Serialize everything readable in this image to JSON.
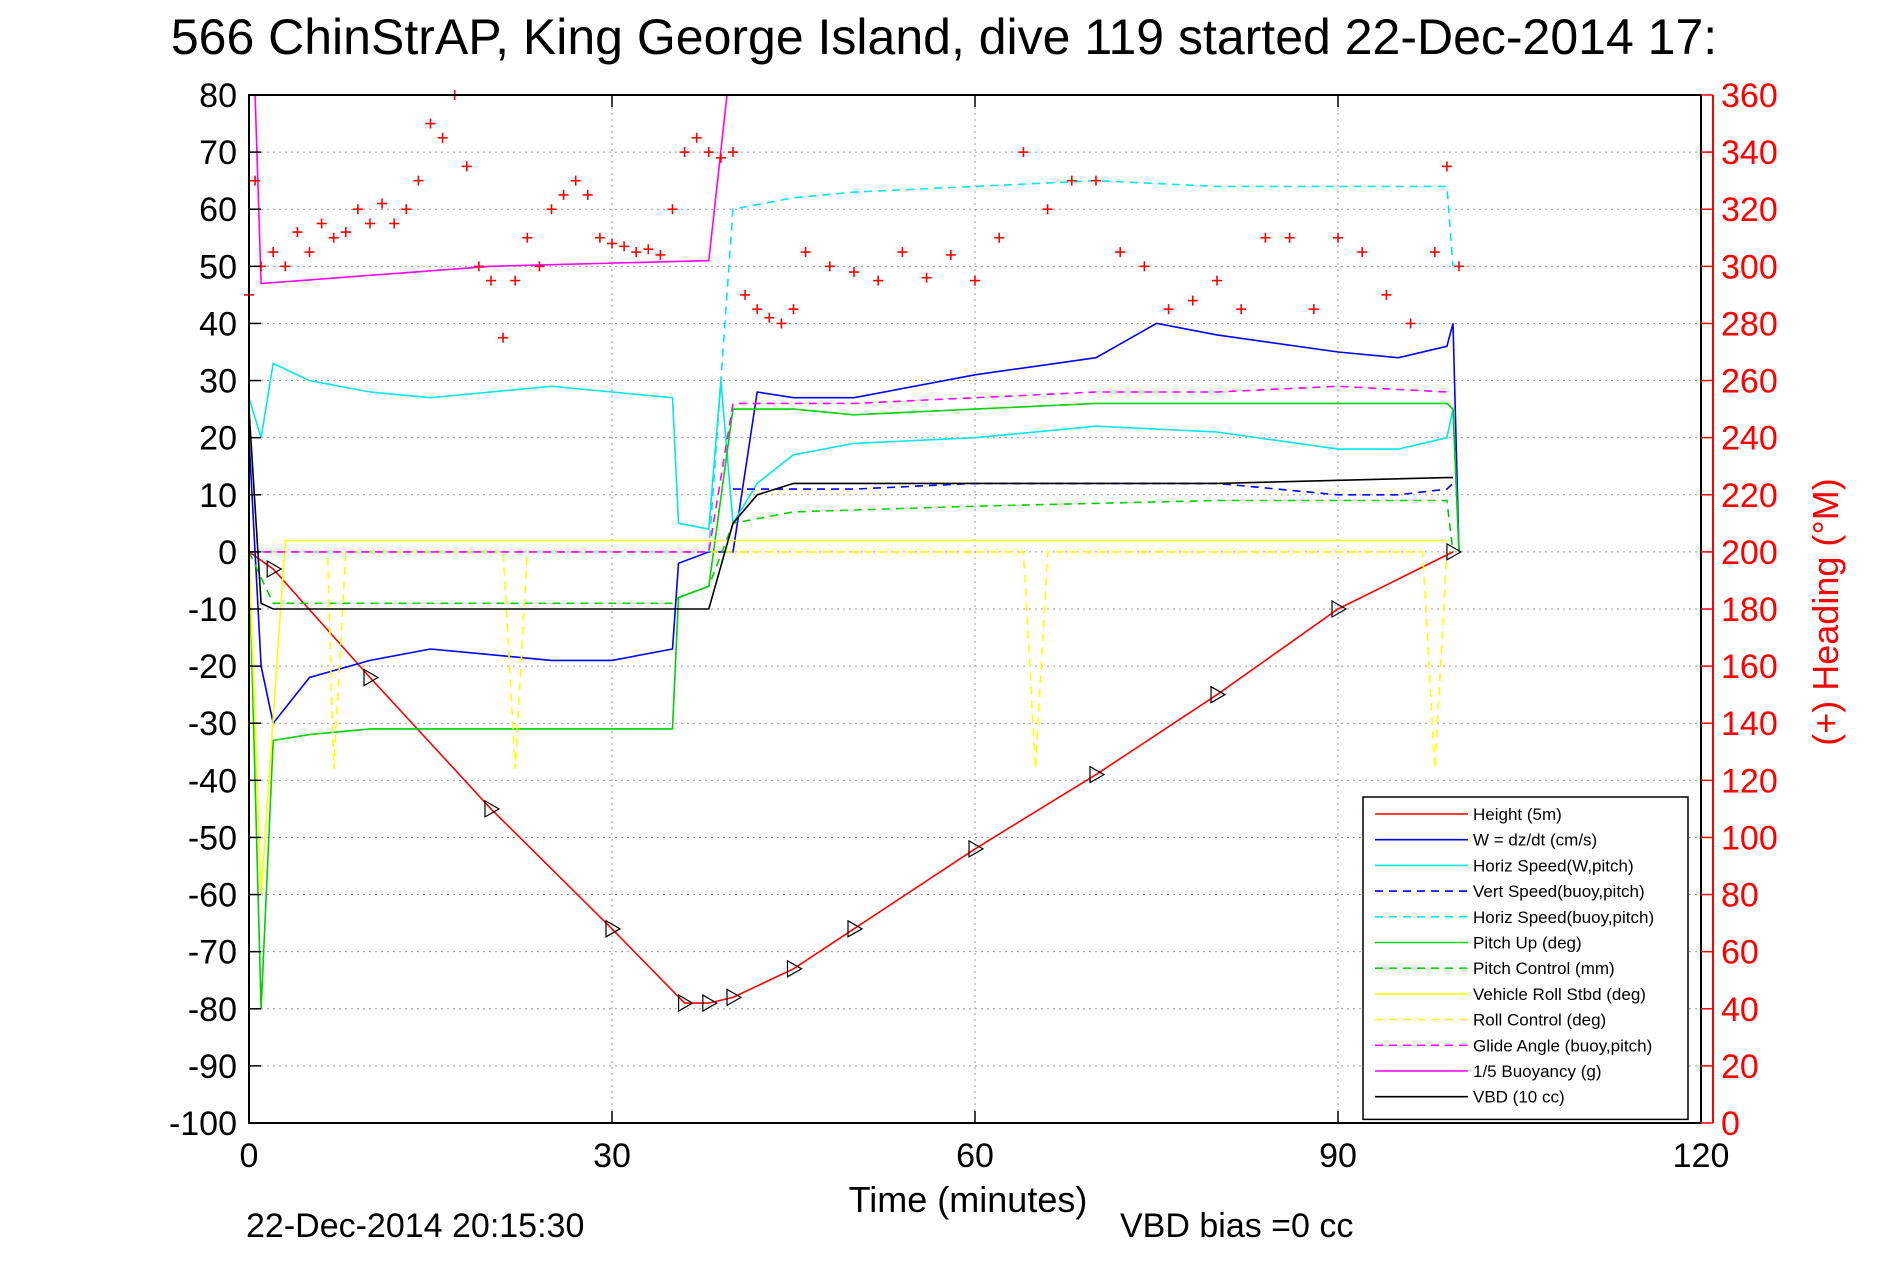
{
  "chart_data": {
    "type": "line",
    "title": "566 ChinStrAP, King George Island, dive 119 started 22-Dec-2014 17:",
    "xlabel": "Time (minutes)",
    "ylabel": "",
    "ylabel_right": "(+) Heading (°M)",
    "xlim": [
      0,
      120
    ],
    "ylim": [
      -100,
      80
    ],
    "ylim_right": [
      0,
      360
    ],
    "x_ticks": [
      "0",
      "30",
      "60",
      "90",
      "120"
    ],
    "y_ticks": [
      "80",
      "70",
      "60",
      "50",
      "40",
      "30",
      "20",
      "10",
      "0",
      "-10",
      "-20",
      "-30",
      "-40",
      "-50",
      "-60",
      "-70",
      "-80",
      "-90",
      "-100"
    ],
    "y_ticks_right": [
      "360",
      "340",
      "320",
      "300",
      "280",
      "260",
      "240",
      "220",
      "200",
      "180",
      "160",
      "140",
      "120",
      "100",
      "80",
      "60",
      "40",
      "20",
      "0"
    ],
    "grid": true,
    "legend_position": "bottom-right",
    "footer_left": "22-Dec-2014 20:15:30",
    "footer_right": "VBD bias =0 cc",
    "series": [
      {
        "name": "Height (5m)",
        "color": "#ff0000",
        "dash": "solid",
        "x": [
          0,
          2,
          10,
          20,
          30,
          36,
          38,
          40,
          45,
          50,
          60,
          70,
          80,
          90,
          99.5
        ],
        "y": [
          0,
          -3,
          -22,
          -45,
          -66,
          -79,
          -79,
          -78,
          -73,
          -66,
          -52,
          -39,
          -25,
          -10,
          0
        ]
      },
      {
        "name": "W = dz/dt (cm/s)",
        "color": "#0000ff",
        "dash": "solid",
        "x": [
          0,
          1,
          2,
          5,
          10,
          15,
          20,
          25,
          30,
          35,
          35.5,
          38,
          40,
          42,
          45,
          50,
          60,
          70,
          75,
          80,
          90,
          95,
          99,
          99.5,
          100
        ],
        "y": [
          20,
          -20,
          -30,
          -22,
          -19,
          -17,
          -18,
          -19,
          -19,
          -17,
          -2,
          0,
          0,
          28,
          27,
          27,
          31,
          34,
          40,
          38,
          35,
          34,
          36,
          40,
          0
        ]
      },
      {
        "name": "Horiz Speed(W,pitch)",
        "color": "#00e8e8",
        "dash": "solid",
        "x": [
          0,
          1,
          2,
          5,
          10,
          15,
          20,
          25,
          30,
          35,
          35.5,
          38,
          39,
          40,
          42,
          45,
          50,
          60,
          70,
          80,
          90,
          95,
          99,
          99.5,
          100
        ],
        "y": [
          27,
          20,
          33,
          30,
          28,
          27,
          28,
          29,
          28,
          27,
          5,
          4,
          30,
          5,
          12,
          17,
          19,
          20,
          22,
          21,
          18,
          18,
          20,
          25,
          0
        ]
      },
      {
        "name": "Vert Speed(buoy,pitch)",
        "color": "#0000ff",
        "dash": "dashed",
        "x": [
          40,
          45,
          50,
          60,
          70,
          80,
          90,
          95,
          99,
          99.5
        ],
        "y": [
          11,
          11,
          11,
          12,
          12,
          12,
          10,
          10,
          11,
          12
        ]
      },
      {
        "name": "Horiz Speed(buoy,pitch)",
        "color": "#00e8e8",
        "dash": "dashed",
        "x": [
          38,
          39,
          40,
          45,
          50,
          60,
          70,
          80,
          90,
          99,
          99.5
        ],
        "y": [
          0,
          30,
          60,
          62,
          63,
          64,
          65,
          64,
          64,
          64,
          50
        ]
      },
      {
        "name": "Pitch Up (deg)",
        "color": "#00d000",
        "dash": "solid",
        "x": [
          0,
          1,
          2,
          5,
          10,
          20,
          30,
          35,
          35.5,
          38,
          40,
          45,
          50,
          60,
          70,
          80,
          90,
          99,
          99.5,
          100
        ],
        "y": [
          0,
          -80,
          -33,
          -32,
          -31,
          -31,
          -31,
          -31,
          -8,
          -6,
          25,
          25,
          24,
          25,
          26,
          26,
          26,
          26,
          25,
          0
        ]
      },
      {
        "name": "Pitch Control (mm)",
        "color": "#00d000",
        "dash": "dashed",
        "x": [
          0,
          2,
          35,
          35.5,
          38,
          40,
          45,
          60,
          80,
          99,
          99.5
        ],
        "y": [
          0,
          -9,
          -9,
          -8,
          -6,
          5,
          7,
          8,
          9,
          9,
          0
        ]
      },
      {
        "name": "Vehicle Roll Stbd (deg)",
        "color": "#ffff00",
        "dash": "solid",
        "x": [
          0,
          1,
          3,
          10,
          20,
          30,
          40,
          50,
          60,
          70,
          80,
          90,
          99
        ],
        "y": [
          0,
          -60,
          2,
          2,
          2,
          2,
          2,
          2,
          2,
          2,
          2,
          2,
          2
        ]
      },
      {
        "name": "Roll Control (deg)",
        "color": "#ffff00",
        "dash": "dashed",
        "x": [
          0,
          2,
          6.5,
          7,
          8,
          21,
          22,
          23,
          38,
          40,
          50,
          60,
          64,
          65,
          66,
          90,
          97,
          98,
          99
        ],
        "y": [
          0,
          0,
          0,
          -38,
          0,
          0,
          -38,
          0,
          0,
          0,
          0,
          0,
          0,
          -38,
          0,
          0,
          0,
          -38,
          0
        ]
      },
      {
        "name": "Glide Angle (buoy,pitch)",
        "color": "#ff00ff",
        "dash": "dashed",
        "x": [
          0,
          38,
          40,
          50,
          60,
          70,
          80,
          90,
          99
        ],
        "y": [
          0,
          0,
          26,
          26,
          27,
          28,
          28,
          29,
          28
        ]
      },
      {
        "name": "1/5 Buoyancy (g)",
        "color": "#ff00ff",
        "dash": "solid",
        "x": [
          0,
          0.5,
          1,
          20,
          38,
          39.5
        ],
        "y": [
          80,
          80,
          47,
          50,
          51,
          80
        ]
      },
      {
        "name": "VBD (10 cc)",
        "color": "#000000",
        "dash": "solid",
        "x": [
          0,
          1,
          2,
          36,
          38,
          40,
          42,
          45,
          50,
          60,
          80,
          99,
          99.5
        ],
        "y": [
          25,
          -9,
          -10,
          -10,
          -10,
          5,
          10,
          12,
          12,
          12,
          12,
          13,
          13
        ]
      }
    ],
    "heading_series": {
      "color": "#ff0000",
      "marker": "+",
      "axis": "right",
      "x": [
        0,
        0.5,
        1,
        2,
        3,
        4,
        5,
        6,
        7,
        8,
        9,
        10,
        11,
        12,
        13,
        14,
        15,
        16,
        17,
        18,
        19,
        20,
        21,
        22,
        23,
        24,
        25,
        26,
        27,
        28,
        29,
        30,
        31,
        32,
        33,
        34,
        35,
        36,
        37,
        38,
        39,
        40,
        41,
        42,
        43,
        44,
        45,
        46,
        48,
        50,
        52,
        54,
        56,
        58,
        60,
        62,
        64,
        66,
        68,
        70,
        72,
        74,
        76,
        78,
        80,
        82,
        84,
        86,
        88,
        90,
        92,
        94,
        96,
        98,
        99,
        100
      ],
      "y": [
        290,
        330,
        300,
        305,
        300,
        312,
        305,
        315,
        310,
        312,
        320,
        315,
        322,
        315,
        320,
        330,
        350,
        345,
        360,
        335,
        300,
        295,
        275,
        295,
        310,
        300,
        320,
        325,
        330,
        325,
        310,
        308,
        307,
        305,
        306,
        304,
        320,
        340,
        345,
        340,
        338,
        340,
        290,
        285,
        282,
        280,
        285,
        305,
        300,
        298,
        295,
        305,
        296,
        304,
        295,
        310,
        340,
        320,
        330,
        330,
        305,
        300,
        285,
        288,
        295,
        285,
        310,
        310,
        285,
        310,
        305,
        290,
        280,
        305,
        335,
        300
      ]
    }
  }
}
